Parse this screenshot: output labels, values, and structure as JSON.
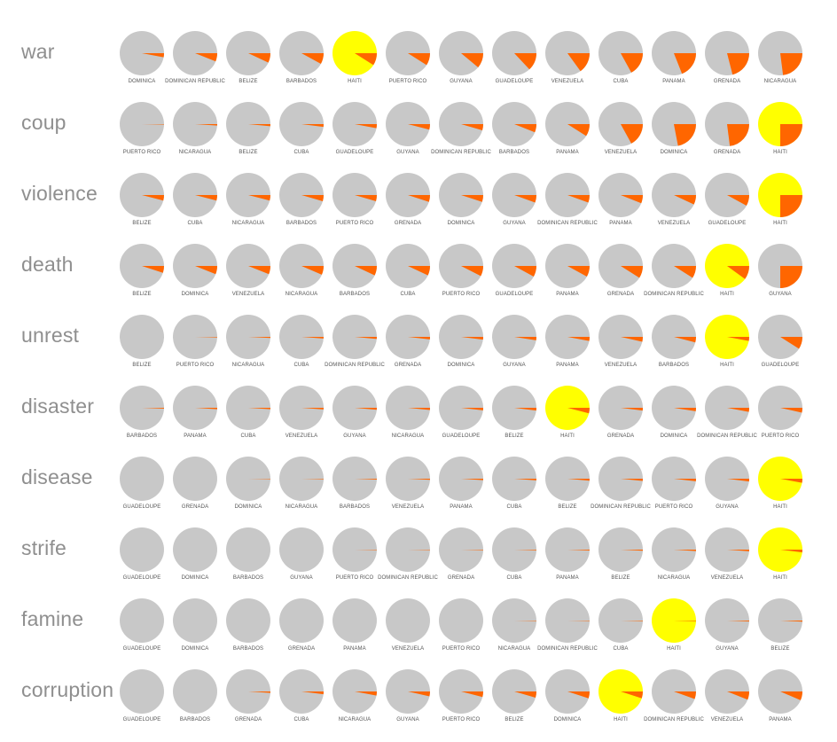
{
  "colors": {
    "background": "#c8c8c8",
    "highlight": "#ffff00",
    "share": "#ff6600",
    "term": "#8f8f8f"
  },
  "chart_data": {
    "type": "pie",
    "note_grid": "small multiples: one row per term, 13 pies per row sorted ascending by share",
    "rows": [
      {
        "term": "war",
        "countries": [
          "DOMINICA",
          "DOMINICAN REPUBLIC",
          "BELIZE",
          "BARBADOS",
          "HAITI",
          "PUERTO RICO",
          "GUYANA",
          "GUADELOUPE",
          "VENEZUELA",
          "CUBA",
          "PANAMA",
          "GRENADA",
          "NICARAGUA"
        ],
        "values": [
          0.03,
          0.06,
          0.07,
          0.08,
          0.09,
          0.09,
          0.11,
          0.13,
          0.15,
          0.17,
          0.19,
          0.21,
          0.23
        ],
        "highlight": 4
      },
      {
        "term": "coup",
        "countries": [
          "PUERTO RICO",
          "NICARAGUA",
          "BELIZE",
          "CUBA",
          "GUADELOUPE",
          "GUYANA",
          "DOMINICAN REPUBLIC",
          "BARBADOS",
          "PANAMA",
          "VENEZUELA",
          "DOMINICA",
          "GRENADA",
          "HAITI"
        ],
        "values": [
          0.003,
          0.01,
          0.015,
          0.02,
          0.03,
          0.04,
          0.045,
          0.06,
          0.09,
          0.17,
          0.22,
          0.23,
          0.25
        ],
        "highlight": 12
      },
      {
        "term": "violence",
        "countries": [
          "BELIZE",
          "CUBA",
          "NICARAGUA",
          "BARBADOS",
          "PUERTO RICO",
          "GRENADA",
          "DOMINICA",
          "GUYANA",
          "DOMINICAN REPUBLIC",
          "PANAMA",
          "VENEZUELA",
          "GUADELOUPE",
          "HAITI"
        ],
        "values": [
          0.04,
          0.04,
          0.04,
          0.045,
          0.045,
          0.05,
          0.05,
          0.055,
          0.055,
          0.06,
          0.07,
          0.08,
          0.25
        ],
        "highlight": 12
      },
      {
        "term": "death",
        "countries": [
          "BELIZE",
          "DOMINICA",
          "VENEZUELA",
          "NICARAGUA",
          "BARBADOS",
          "CUBA",
          "PUERTO RICO",
          "GUADELOUPE",
          "PANAMA",
          "GRENADA",
          "DOMINICAN REPUBLIC",
          "HAITI",
          "GUYANA"
        ],
        "values": [
          0.05,
          0.06,
          0.06,
          0.065,
          0.07,
          0.07,
          0.075,
          0.08,
          0.08,
          0.09,
          0.09,
          0.1,
          0.25
        ],
        "highlight": 11
      },
      {
        "term": "unrest",
        "countries": [
          "BELIZE",
          "PUERTO RICO",
          "NICARAGUA",
          "CUBA",
          "DOMINICAN REPUBLIC",
          "GRENADA",
          "DOMINICA",
          "GUYANA",
          "PANAMA",
          "VENEZUELA",
          "BARBADOS",
          "HAITI",
          "GUADELOUPE"
        ],
        "values": [
          0.0,
          0.004,
          0.008,
          0.012,
          0.015,
          0.018,
          0.02,
          0.025,
          0.03,
          0.035,
          0.04,
          0.03,
          0.09
        ],
        "highlight": 11
      },
      {
        "term": "disaster",
        "countries": [
          "BARBADOS",
          "PANAMA",
          "CUBA",
          "VENEZUELA",
          "GUYANA",
          "NICARAGUA",
          "GUADELOUPE",
          "BELIZE",
          "HAITI",
          "GRENADA",
          "DOMINICA",
          "DOMINICAN REPUBLIC",
          "PUERTO RICO"
        ],
        "values": [
          0.006,
          0.01,
          0.01,
          0.012,
          0.014,
          0.016,
          0.018,
          0.02,
          0.04,
          0.02,
          0.025,
          0.03,
          0.035
        ],
        "highlight": 8
      },
      {
        "term": "disease",
        "countries": [
          "GUADELOUPE",
          "GRENADA",
          "DOMINICA",
          "NICARAGUA",
          "BARBADOS",
          "VENEZUELA",
          "PANAMA",
          "CUBA",
          "BELIZE",
          "DOMINICAN REPUBLIC",
          "PUERTO RICO",
          "GUYANA",
          "HAITI"
        ],
        "values": [
          0.0,
          0.0,
          0.002,
          0.004,
          0.006,
          0.008,
          0.01,
          0.012,
          0.014,
          0.016,
          0.018,
          0.02,
          0.03
        ],
        "highlight": 12
      },
      {
        "term": "strife",
        "countries": [
          "GUADELOUPE",
          "DOMINICA",
          "BARBADOS",
          "GUYANA",
          "PUERTO RICO",
          "DOMINICAN REPUBLIC",
          "GRENADA",
          "CUBA",
          "PANAMA",
          "BELIZE",
          "NICARAGUA",
          "VENEZUELA",
          "HAITI"
        ],
        "values": [
          0.0,
          0.0,
          0.0,
          0.0,
          0.002,
          0.003,
          0.004,
          0.005,
          0.006,
          0.008,
          0.01,
          0.012,
          0.02
        ],
        "highlight": 12
      },
      {
        "term": "famine",
        "countries": [
          "GUADELOUPE",
          "DOMINICA",
          "BARBADOS",
          "GRENADA",
          "PANAMA",
          "VENEZUELA",
          "PUERTO RICO",
          "NICARAGUA",
          "DOMINICAN REPUBLIC",
          "CUBA",
          "HAITI",
          "GUYANA",
          "BELIZE"
        ],
        "values": [
          0.0,
          0.0,
          0.0,
          0.0,
          0.0,
          0.0,
          0.0,
          0.002,
          0.003,
          0.004,
          0.005,
          0.006,
          0.008
        ],
        "highlight": 10
      },
      {
        "term": "corruption",
        "countries": [
          "GUADELOUPE",
          "BARBADOS",
          "GRENADA",
          "CUBA",
          "NICARAGUA",
          "GUYANA",
          "PUERTO RICO",
          "BELIZE",
          "DOMINICA",
          "HAITI",
          "DOMINICAN REPUBLIC",
          "VENEZUELA",
          "PANAMA"
        ],
        "values": [
          0.0,
          0.0,
          0.01,
          0.02,
          0.03,
          0.035,
          0.04,
          0.045,
          0.05,
          0.05,
          0.055,
          0.06,
          0.065
        ],
        "highlight": 9
      }
    ]
  }
}
